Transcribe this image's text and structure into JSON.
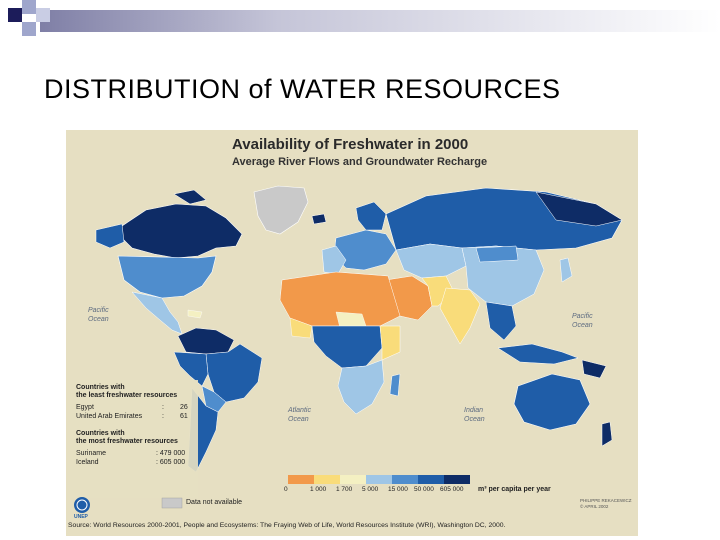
{
  "slide": {
    "title": "DISTRIBUTION  of  WATER RESOURCES"
  },
  "map": {
    "title": "Availability of Freshwater in 2000",
    "subtitle": "Average River Flows and Groundwater Recharge",
    "oceans": {
      "pacific_left": "Pacific\nOcean",
      "pacific_right": "Pacific\nOcean",
      "atlantic": "Atlantic\nOcean",
      "indian": "Indian\nOcean"
    },
    "least_heading": "Countries with\nthe least freshwater resources",
    "least": [
      {
        "country": "Egypt",
        "sep": ":",
        "value": "26"
      },
      {
        "country": "United Arab Emirates",
        "sep": ":",
        "value": "61"
      }
    ],
    "most_heading": "Countries with\nthe most freshwater resources",
    "most": [
      {
        "country": "Suriname",
        "value": ": 479 000"
      },
      {
        "country": "Iceland",
        "value": ": 605 000"
      }
    ],
    "unep_label": "UNEP",
    "na_label": "Data not available",
    "scale": {
      "ticks": [
        "0",
        "1 000",
        "1 700",
        "5 000",
        "15 000",
        "50 000",
        "605 000"
      ],
      "unit": "m³ per capita per year",
      "colors": [
        "#f2994a",
        "#f9dc7a",
        "#f4f0c2",
        "#9fc6e6",
        "#4f8dcd",
        "#1f5da8",
        "#0e2c66"
      ],
      "na_color": "#c9c9c9"
    },
    "credit": "PHILIPPE REKACEWICZ\n© APRIL 2002",
    "source": "Source: World Resources 2000-2001, People and Ecosystems: The Fraying Web of Life, World Resources Institute (WRI), Washington DC, 2000."
  }
}
